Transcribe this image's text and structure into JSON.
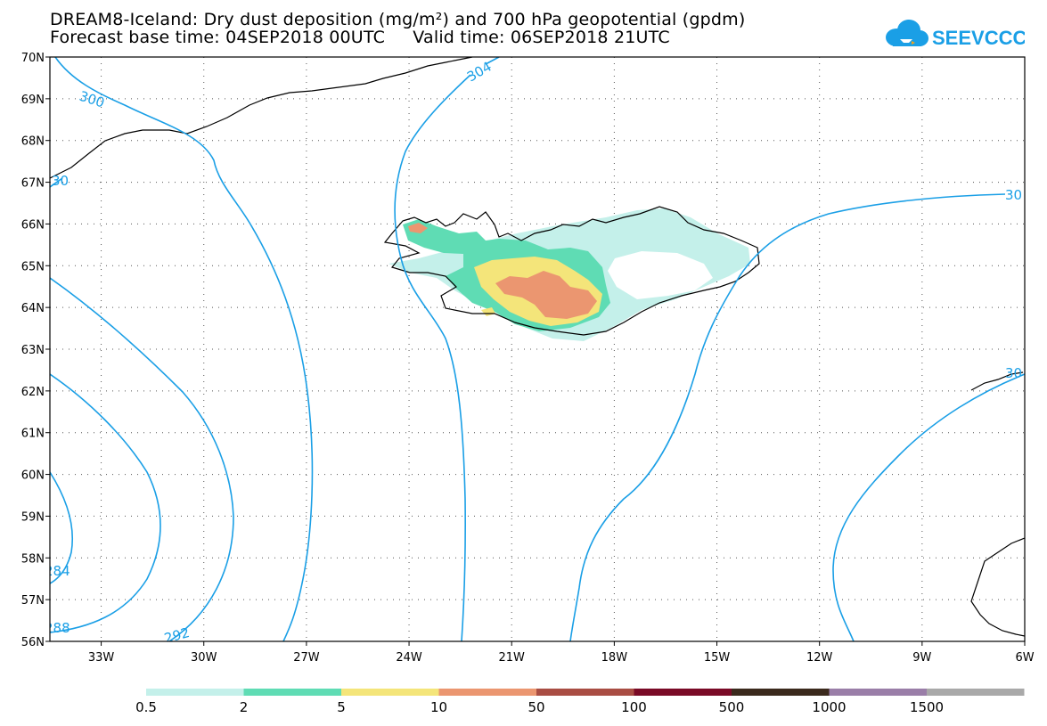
{
  "header": {
    "title_line1": "DREAM8-Iceland: Dry dust deposition (mg/m²) and 700 hPa geopotential (gpdm)",
    "title_line2": "Forecast base time: 04SEP2018 00UTC     Valid time: 06SEP2018 21UTC"
  },
  "logo": {
    "text": "SEEVCCC",
    "icon": "cloud-icon",
    "color": "#1a9fe6"
  },
  "map": {
    "lon_range": [
      -34.5,
      -6
    ],
    "lat_range": [
      56,
      70
    ],
    "x_ticks": [
      "33W",
      "30W",
      "27W",
      "24W",
      "21W",
      "18W",
      "15W",
      "12W",
      "9W",
      "6W"
    ],
    "y_ticks": [
      "56N",
      "57N",
      "58N",
      "59N",
      "60N",
      "61N",
      "62N",
      "63N",
      "64N",
      "65N",
      "66N",
      "67N",
      "68N",
      "69N",
      "70N"
    ],
    "gridlines": true,
    "contour_color": "#1a9fe6",
    "contour_labels": [
      "300",
      "304",
      "30",
      "30",
      "284",
      "288",
      "292",
      "30"
    ]
  },
  "legend": {
    "labels": [
      "0.5",
      "2",
      "5",
      "10",
      "50",
      "100",
      "500",
      "1000",
      "1500"
    ],
    "colors": [
      "#c4f0ea",
      "#5fdcb4",
      "#f4e57a",
      "#eb9670",
      "#a94d43",
      "#7a0a26",
      "#3b2a1d",
      "#9a7ea8",
      "#a9a9a9"
    ]
  }
}
